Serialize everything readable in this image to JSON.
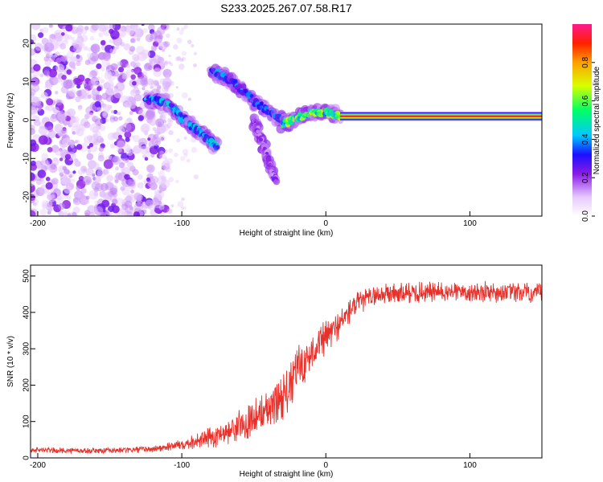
{
  "figure_title": "S233.2025.267.07.58.R17",
  "colors": {
    "snr_line": "#e8302a",
    "ridge_main": "#7a12e6",
    "axis": "#000000"
  },
  "chart_data": [
    {
      "type": "heatmap",
      "title": "S233.2025.267.07.58.R17",
      "xlabel": "Height of straight line (km)",
      "ylabel": "Frequency (Hz)",
      "xlim": [
        -205,
        150
      ],
      "ylim": [
        -25,
        25
      ],
      "xticks": [
        -200,
        -100,
        0,
        100
      ],
      "xtick_labels": [
        "-200",
        "-100",
        "0",
        "100"
      ],
      "yticks": [
        -20,
        -10,
        0,
        10,
        20
      ],
      "ytick_labels": [
        "-20",
        "-10",
        "0",
        "10",
        "20"
      ],
      "colorbar": {
        "label": "Normalized spectral amplitude",
        "range": [
          0,
          1
        ],
        "ticks": [
          0.0,
          0.2,
          0.4,
          0.6,
          0.8
        ],
        "tick_labels": [
          "0.0",
          "0.2",
          "0.4",
          "0.6",
          "0.8"
        ]
      },
      "features": [
        {
          "name": "noise-cloud",
          "x_range": [
            -205,
            -110
          ],
          "y_range": [
            -25,
            25
          ],
          "amplitude": 0.15
        },
        {
          "name": "descending-ridge-1",
          "points": [
            [
              -125,
              5.5
            ],
            [
              -110,
              4.5
            ],
            [
              -95,
              -1
            ],
            [
              -85,
              -4
            ],
            [
              -75,
              -7
            ]
          ],
          "amplitude": 0.4
        },
        {
          "name": "descending-ridge-2",
          "points": [
            [
              -80,
              13
            ],
            [
              -65,
              10
            ],
            [
              -50,
              5
            ],
            [
              -35,
              1
            ],
            [
              -25,
              -1
            ]
          ],
          "amplitude": 0.35
        },
        {
          "name": "descending-tail",
          "points": [
            [
              -50,
              0
            ],
            [
              -42,
              -8
            ],
            [
              -35,
              -16
            ]
          ],
          "amplitude": 0.2
        },
        {
          "name": "transition",
          "points": [
            [
              -30,
              -1
            ],
            [
              -20,
              0.5
            ],
            [
              -10,
              2
            ],
            [
              0,
              2
            ],
            [
              10,
              1
            ]
          ],
          "amplitude": 0.6
        },
        {
          "name": "steady-line",
          "x_range": [
            10,
            150
          ],
          "y": 1,
          "amplitude": 0.95
        }
      ]
    },
    {
      "type": "line",
      "xlabel": "Height of straight line (km)",
      "ylabel": "SNR (10 * v/v)",
      "xlim": [
        -205,
        150
      ],
      "ylim": [
        0,
        530
      ],
      "xticks": [
        -200,
        -100,
        0,
        100
      ],
      "xtick_labels": [
        "-200",
        "-100",
        "0",
        "100"
      ],
      "yticks": [
        0,
        100,
        200,
        300,
        400,
        500
      ],
      "ytick_labels": [
        "0",
        "100",
        "200",
        "300",
        "400",
        "500"
      ],
      "series": [
        {
          "name": "SNR",
          "envelope_x": [
            -205,
            -180,
            -150,
            -120,
            -100,
            -80,
            -60,
            -40,
            -25,
            -20,
            -10,
            0,
            10,
            20,
            30,
            40,
            60,
            80,
            100,
            120,
            150
          ],
          "envelope_y": [
            22,
            20,
            20,
            24,
            38,
            55,
            90,
            130,
            190,
            240,
            290,
            330,
            370,
            420,
            440,
            450,
            455,
            455,
            458,
            455,
            452
          ],
          "noise_amplitude": [
            8,
            8,
            8,
            10,
            15,
            30,
            45,
            60,
            70,
            70,
            55,
            50,
            40,
            35,
            30,
            30,
            30,
            30,
            30,
            30,
            30
          ]
        }
      ]
    }
  ]
}
